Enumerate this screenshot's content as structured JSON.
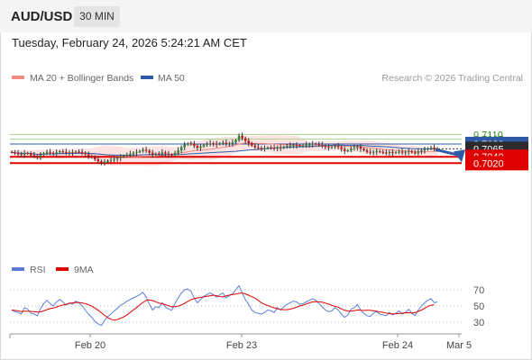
{
  "header": {
    "symbol": "AUD/USD",
    "timeframe": "30 MIN",
    "datetime": "Tuesday, February 24, 2026 5:24:21 AM CET"
  },
  "legend": {
    "ma20_label": "MA 20 + Bollinger Bands",
    "ma50_label": "MA 50",
    "ma20_color": "#f28b82",
    "ma50_color": "#2e5aa8",
    "copyright": "Research © 2026 Trading Central"
  },
  "rsi_legend": {
    "rsi_label": "RSI",
    "ma9_label": "9MA",
    "rsi_color": "#5b7fd6",
    "ma9_color": "#e00000"
  },
  "colors": {
    "up": "#2e8b3a",
    "down": "#d01818",
    "band": "#fde3e1",
    "green_level": "#a9d18e",
    "blue_level": "#2e5aa8",
    "red_level": "#e00000",
    "arrow": "#2e5aa8"
  },
  "chart_data": [
    {
      "type": "candlestick",
      "x_ticks": [
        "Feb 20",
        "Feb 23",
        "Feb 24",
        "Mar 5"
      ],
      "y_ticks": [
        "0.7110",
        "0.7095",
        "0.7080",
        "0.7065",
        "0.7040",
        "0.7020"
      ],
      "ylim": [
        0.7004,
        0.7124
      ],
      "levels": [
        {
          "value": 0.711,
          "label": "0.7110",
          "kind": "resistance"
        },
        {
          "value": 0.7095,
          "label": "0.7095",
          "kind": "resistance"
        },
        {
          "value": 0.708,
          "label": "0.7080",
          "kind": "pivot"
        },
        {
          "value": 0.7065,
          "label": "0.7065",
          "kind": "last"
        },
        {
          "value": 0.704,
          "label": "0.7040",
          "kind": "support"
        },
        {
          "value": 0.702,
          "label": "0.7020",
          "kind": "support"
        }
      ],
      "forecast": {
        "from": 0.7065,
        "to": 0.702
      },
      "closes": [
        0.7054,
        0.7051,
        0.705,
        0.7047,
        0.7052,
        0.705,
        0.7045,
        0.7043,
        0.704,
        0.7046,
        0.7051,
        0.7055,
        0.7052,
        0.705,
        0.7054,
        0.7057,
        0.7055,
        0.7052,
        0.7054,
        0.7053,
        0.7056,
        0.7055,
        0.7052,
        0.7048,
        0.7043,
        0.7038,
        0.7032,
        0.7026,
        0.7022,
        0.7024,
        0.7028,
        0.703,
        0.7033,
        0.7036,
        0.704,
        0.7043,
        0.7046,
        0.7049,
        0.7052,
        0.7055,
        0.7058,
        0.7062,
        0.7059,
        0.7053,
        0.7047,
        0.705,
        0.7049,
        0.7054,
        0.705,
        0.7047,
        0.7045,
        0.7052,
        0.706,
        0.707,
        0.7078,
        0.7082,
        0.708,
        0.7074,
        0.7068,
        0.7072,
        0.7077,
        0.708,
        0.7082,
        0.7081,
        0.7079,
        0.7082,
        0.7084,
        0.708,
        0.7082,
        0.7085,
        0.7092,
        0.7106,
        0.7098,
        0.709,
        0.7083,
        0.7075,
        0.707,
        0.7068,
        0.7066,
        0.7067,
        0.7069,
        0.7068,
        0.7066,
        0.707,
        0.7068,
        0.7071,
        0.7073,
        0.7075,
        0.7077,
        0.7076,
        0.7074,
        0.7075,
        0.7077,
        0.7079,
        0.7081,
        0.708,
        0.7077,
        0.7074,
        0.7071,
        0.7069,
        0.707,
        0.7073,
        0.707,
        0.7064,
        0.7058,
        0.706,
        0.7066,
        0.7068,
        0.7072,
        0.7065,
        0.706,
        0.7055,
        0.7053,
        0.7056,
        0.7058,
        0.7055,
        0.7053,
        0.7052,
        0.7055,
        0.7052,
        0.7054,
        0.7056,
        0.7053,
        0.7055,
        0.7058,
        0.7054,
        0.7051,
        0.7056,
        0.706,
        0.7063,
        0.7066,
        0.7068,
        0.7064,
        0.7065
      ]
    },
    {
      "type": "line",
      "title": "RSI",
      "y_ticks": [
        "70",
        "50",
        "30"
      ],
      "ylim": [
        20,
        80
      ],
      "rsi": [
        45,
        43,
        42,
        40,
        48,
        46,
        41,
        40,
        38,
        47,
        53,
        57,
        53,
        50,
        55,
        58,
        55,
        51,
        54,
        52,
        56,
        54,
        50,
        45,
        40,
        36,
        31,
        28,
        26,
        32,
        37,
        40,
        44,
        47,
        51,
        53,
        56,
        58,
        60,
        62,
        64,
        67,
        61,
        52,
        45,
        49,
        48,
        54,
        49,
        46,
        45,
        53,
        60,
        66,
        70,
        71,
        68,
        60,
        54,
        58,
        62,
        64,
        66,
        64,
        61,
        64,
        66,
        60,
        63,
        65,
        70,
        75,
        66,
        58,
        52,
        45,
        42,
        41,
        40,
        42,
        45,
        44,
        42,
        48,
        45,
        49,
        52,
        54,
        56,
        55,
        52,
        53,
        55,
        57,
        59,
        57,
        53,
        49,
        45,
        43,
        44,
        48,
        45,
        40,
        36,
        39,
        46,
        48,
        52,
        45,
        41,
        38,
        37,
        41,
        43,
        40,
        39,
        38,
        42,
        39,
        41,
        44,
        40,
        42,
        46,
        41,
        38,
        45,
        50,
        54,
        57,
        59,
        54,
        55
      ],
      "ma9": [
        45,
        44.5,
        44,
        43,
        43.6,
        43.7,
        43.3,
        43,
        42.6,
        42.8,
        44,
        45.6,
        46.8,
        47.5,
        48.8,
        50.2,
        51.2,
        52.1,
        53.3,
        53.9,
        54.3,
        54.3,
        53.8,
        53,
        51.6,
        49.8,
        47.4,
        44.8,
        41.7,
        38.4,
        35.7,
        33.6,
        32.6,
        33.2,
        34.9,
        36.7,
        39,
        42,
        45.1,
        48,
        51.5,
        54.3,
        57,
        57.5,
        56.7,
        55.2,
        53.6,
        52.8,
        51.7,
        50.3,
        49,
        49.1,
        49.9,
        51.2,
        53.3,
        55.6,
        57.9,
        59,
        60,
        60.6,
        61.2,
        61.9,
        62.7,
        63.3,
        62.7,
        61.6,
        61.2,
        62.6,
        63.4,
        64.2,
        64.7,
        65.7,
        66.1,
        65,
        63.3,
        61.4,
        59.7,
        57,
        53.9,
        52.1,
        50.6,
        49.1,
        47.8,
        46.7,
        45.7,
        45.5,
        45.4,
        46.1,
        47.2,
        48.5,
        50,
        51.1,
        52.4,
        53.9,
        55.1,
        55.4,
        55.1,
        54.7,
        53.6,
        52.3,
        50.8,
        49.7,
        48.5,
        46.4,
        44.7,
        43.8,
        43.8,
        44.2,
        45.1,
        44.8,
        44.6,
        44.7,
        44.8,
        44.2,
        43.6,
        42.7,
        42.2,
        41.3,
        40.4,
        40.3,
        40.5,
        40.9,
        41.1,
        41.6,
        41.8,
        41.3,
        41.9,
        43.3,
        45,
        47.1,
        49.4,
        50.9,
        51.5
      ]
    }
  ]
}
